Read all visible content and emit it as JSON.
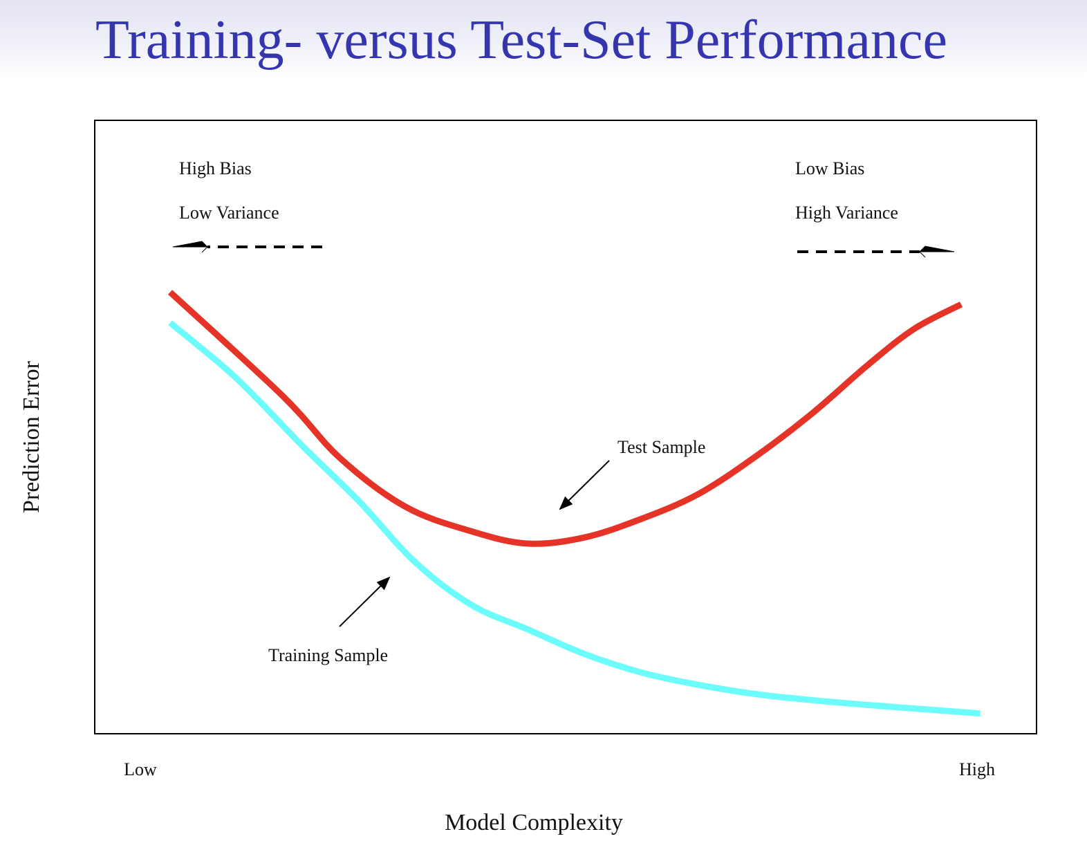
{
  "slide": {
    "title": "Training- versus Test-Set Performance"
  },
  "chart_data": {
    "type": "line",
    "xlabel": "Model Complexity",
    "ylabel": "Prediction Error",
    "x_tick_labels": [
      "Low",
      "High"
    ],
    "xlim": [
      0,
      1
    ],
    "ylim": [
      0,
      1
    ],
    "grid": false,
    "annotations": {
      "left_bias": "High Bias",
      "left_variance": "Low Variance",
      "right_bias": "Low Bias",
      "right_variance": "High Variance"
    },
    "series": [
      {
        "name": "Test Sample",
        "color": "#e53327",
        "x": [
          0.08,
          0.2,
          0.26,
          0.33,
          0.4,
          0.46,
          0.52,
          0.58,
          0.64,
          0.7,
          0.76,
          0.82,
          0.87,
          0.92
        ],
        "y": [
          0.72,
          0.55,
          0.45,
          0.37,
          0.33,
          0.31,
          0.32,
          0.35,
          0.39,
          0.45,
          0.52,
          0.6,
          0.66,
          0.7
        ]
      },
      {
        "name": "Training Sample",
        "color": "#6cfcfc",
        "x": [
          0.08,
          0.15,
          0.22,
          0.28,
          0.34,
          0.4,
          0.46,
          0.52,
          0.58,
          0.64,
          0.7,
          0.76,
          0.82,
          0.88,
          0.94
        ],
        "y": [
          0.67,
          0.58,
          0.47,
          0.38,
          0.28,
          0.21,
          0.17,
          0.13,
          0.1,
          0.08,
          0.065,
          0.055,
          0.047,
          0.04,
          0.033
        ]
      }
    ]
  },
  "colors": {
    "title": "#3535b0",
    "frame": "#000000"
  }
}
